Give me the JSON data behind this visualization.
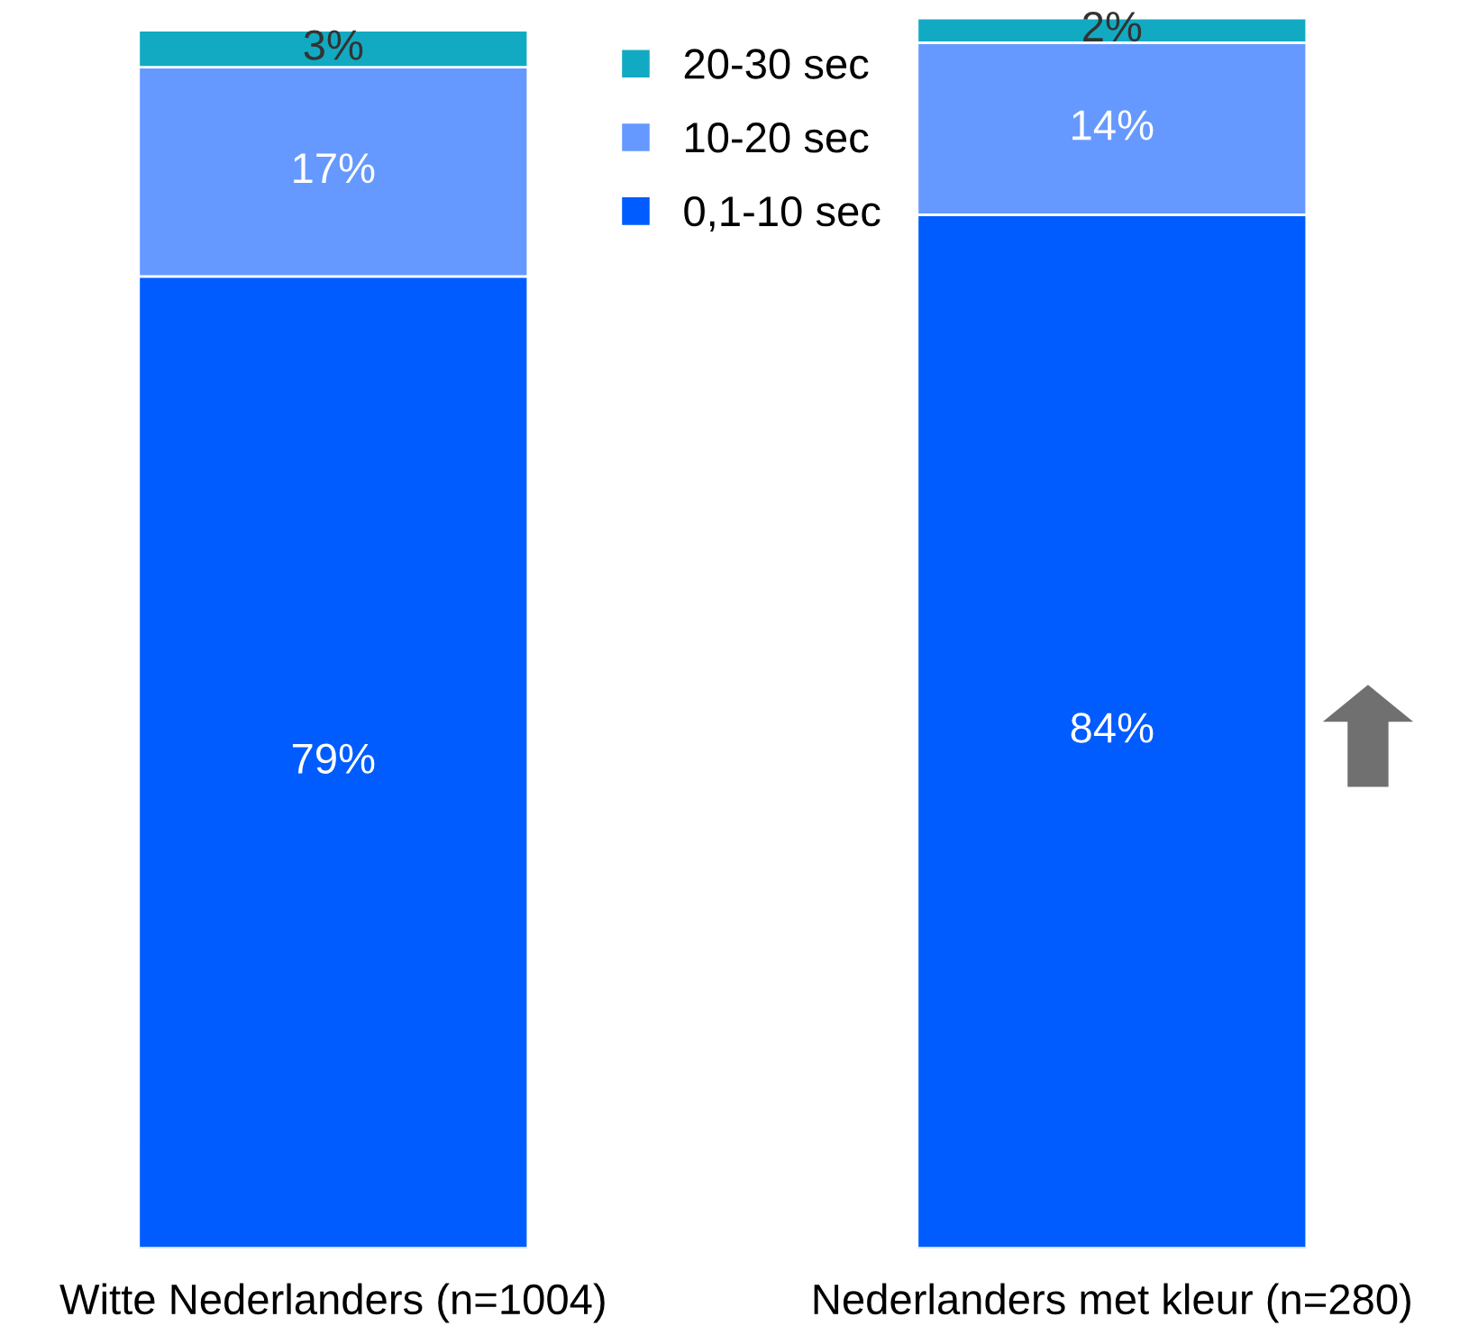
{
  "chart_data": {
    "type": "bar",
    "stacked": true,
    "categories": [
      "Witte Nederlanders (n=1004)",
      "Nederlanders met kleur (n=280)"
    ],
    "series": [
      {
        "name": "0,1-10 sec",
        "color": "#005cff",
        "values": [
          79,
          84
        ],
        "value_labels": [
          "79%",
          "84%"
        ]
      },
      {
        "name": "10-20 sec",
        "color": "#6699ff",
        "values": [
          17,
          14
        ],
        "value_labels": [
          "17%",
          "14%"
        ]
      },
      {
        "name": "20-30 sec",
        "color": "#12aac2",
        "values": [
          3,
          2
        ],
        "value_labels": [
          "3%",
          "2%"
        ]
      }
    ],
    "ylim": [
      0,
      100
    ],
    "grid": false,
    "legend": "top"
  }
}
